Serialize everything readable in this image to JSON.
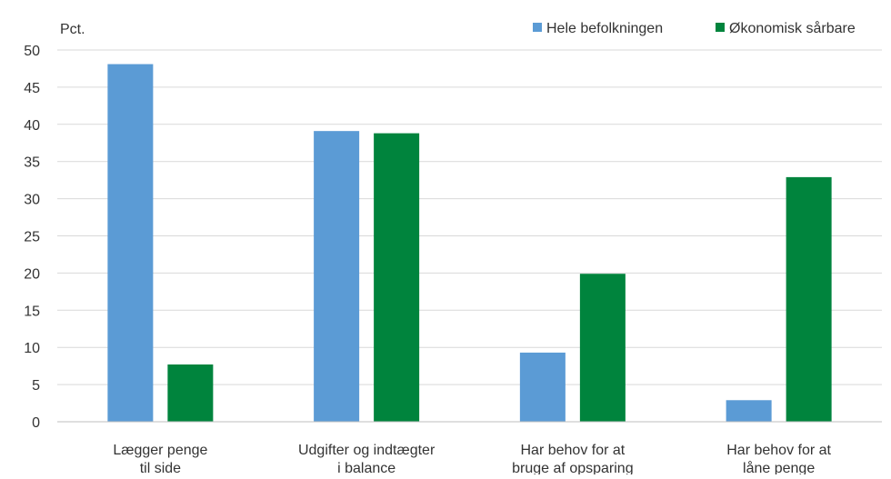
{
  "chart_data": {
    "type": "bar",
    "unit_label": "Pct.",
    "categories": [
      [
        "Lægger penge",
        "til side"
      ],
      [
        "Udgifter og indtægter",
        "i balance"
      ],
      [
        "Har behov for at",
        "bruge af opsparing"
      ],
      [
        "Har behov for at",
        "låne penge"
      ]
    ],
    "series": [
      {
        "name": "Hele befolkningen",
        "color": "#5b9bd5",
        "values": [
          48.1,
          39.1,
          9.3,
          2.9
        ]
      },
      {
        "name": "Økonomisk sårbare",
        "color": "#00843d",
        "values": [
          7.7,
          38.8,
          19.9,
          32.9
        ]
      }
    ],
    "ylim": [
      0,
      50
    ],
    "yticks": [
      0,
      5,
      10,
      15,
      20,
      25,
      30,
      35,
      40,
      45,
      50
    ],
    "grid": true,
    "legend_position": "top-right"
  }
}
